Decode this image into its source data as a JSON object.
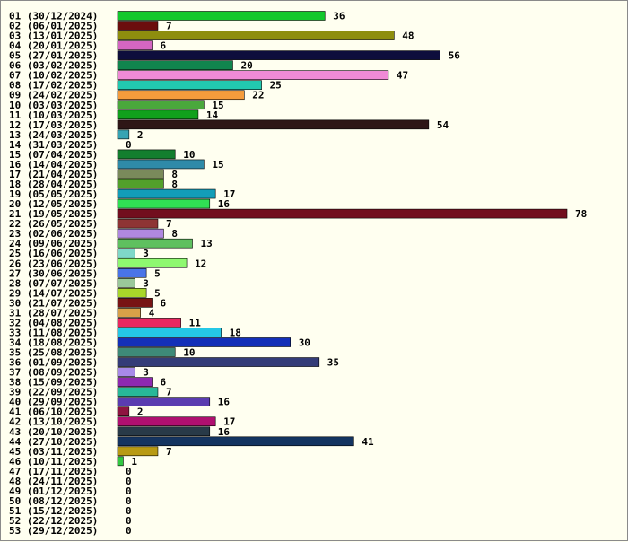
{
  "chart_data": {
    "type": "bar",
    "orientation": "horizontal",
    "title": "",
    "xlabel": "",
    "ylabel": "",
    "grid": false,
    "legend": "none",
    "categories": [
      "01 (30/12/2024)",
      "02 (06/01/2025)",
      "03 (13/01/2025)",
      "04 (20/01/2025)",
      "05 (27/01/2025)",
      "06 (03/02/2025)",
      "07 (10/02/2025)",
      "08 (17/02/2025)",
      "09 (24/02/2025)",
      "10 (03/03/2025)",
      "11 (10/03/2025)",
      "12 (17/03/2025)",
      "13 (24/03/2025)",
      "14 (31/03/2025)",
      "15 (07/04/2025)",
      "16 (14/04/2025)",
      "17 (21/04/2025)",
      "18 (28/04/2025)",
      "19 (05/05/2025)",
      "20 (12/05/2025)",
      "21 (19/05/2025)",
      "22 (26/05/2025)",
      "23 (02/06/2025)",
      "24 (09/06/2025)",
      "25 (16/06/2025)",
      "26 (23/06/2025)",
      "27 (30/06/2025)",
      "28 (07/07/2025)",
      "29 (14/07/2025)",
      "30 (21/07/2025)",
      "31 (28/07/2025)",
      "32 (04/08/2025)",
      "33 (11/08/2025)",
      "34 (18/08/2025)",
      "35 (25/08/2025)",
      "36 (01/09/2025)",
      "37 (08/09/2025)",
      "38 (15/09/2025)",
      "39 (22/09/2025)",
      "40 (29/09/2025)",
      "41 (06/10/2025)",
      "42 (13/10/2025)",
      "43 (20/10/2025)",
      "44 (27/10/2025)",
      "45 (03/11/2025)",
      "46 (10/11/2025)",
      "47 (17/11/2025)",
      "48 (24/11/2025)",
      "49 (01/12/2025)",
      "50 (08/12/2025)",
      "51 (15/12/2025)",
      "52 (22/12/2025)",
      "53 (29/12/2025)"
    ],
    "values": [
      36,
      7,
      48,
      6,
      56,
      20,
      47,
      25,
      22,
      15,
      14,
      54,
      2,
      0,
      10,
      15,
      8,
      8,
      17,
      16,
      78,
      7,
      8,
      13,
      3,
      12,
      5,
      3,
      5,
      6,
      4,
      11,
      18,
      30,
      10,
      35,
      3,
      6,
      7,
      16,
      2,
      17,
      16,
      41,
      7,
      1,
      0,
      0,
      0,
      0,
      0,
      0,
      0
    ],
    "value_labels": [
      "36",
      "7",
      "48",
      "6",
      "56",
      "20",
      "47",
      "25",
      "22",
      "15",
      "14",
      "54",
      "2",
      "0",
      "10",
      "15",
      "8",
      "8",
      "17",
      "16",
      "78",
      "7",
      "8",
      "13",
      "3",
      "12",
      "5",
      "3",
      "5",
      "6",
      "4",
      "11",
      "18",
      "30",
      "10",
      "35",
      "3",
      "6",
      "7",
      "16",
      "2",
      "17",
      "16",
      "41",
      "7",
      "1",
      "0",
      "0",
      "0",
      "0",
      "0",
      "0",
      "0"
    ],
    "colors": [
      "#13c82c",
      "#6b0d0d",
      "#8e8e0e",
      "#d466c2",
      "#0e0e3c",
      "#11854e",
      "#f08ad6",
      "#22c9b0",
      "#f59c3c",
      "#4aa83c",
      "#11a01c",
      "#2e1616",
      "#36a3b3",
      "#ffffff",
      "#137e2e",
      "#2f8aa8",
      "#7a8a5b",
      "#52a02a",
      "#139db8",
      "#30e054",
      "#720e1e",
      "#8e3434",
      "#b088e0",
      "#5fc05f",
      "#7fd8c8",
      "#8ef870",
      "#4a74e8",
      "#9ac89a",
      "#a8d62a",
      "#781414",
      "#d8a048",
      "#ea2860",
      "#25c8e6",
      "#1430b8",
      "#3e8a78",
      "#343c78",
      "#a88ae8",
      "#8e2ab0",
      "#28b898",
      "#5a3cb0",
      "#8e1440",
      "#b01070",
      "#283a48",
      "#143460",
      "#b89a14",
      "#32c842",
      "#ffffff",
      "#ffffff",
      "#ffffff",
      "#ffffff",
      "#ffffff",
      "#ffffff",
      "#ffffff"
    ],
    "xlim": [
      0,
      78
    ]
  }
}
